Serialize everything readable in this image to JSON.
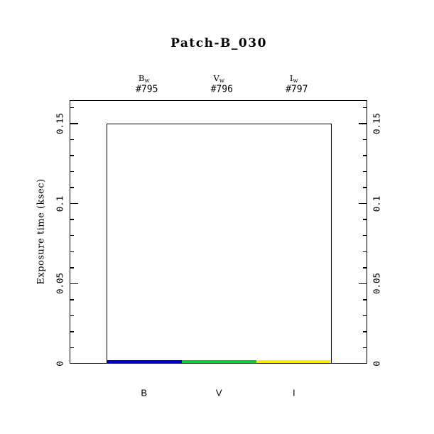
{
  "page": {
    "background_color": "#FFFFFF",
    "foreground_color": "#000000"
  },
  "chart_data": {
    "type": "bar",
    "title": "Patch-B_030",
    "xlabel": "",
    "ylabel": "Exposure time (ksec)",
    "categories": [
      "B",
      "V",
      "I"
    ],
    "series": [
      {
        "name": "planned-exposure-outline",
        "style": "outline",
        "color": "#000000",
        "values": [
          0.15,
          0.15,
          0.15
        ]
      },
      {
        "name": "obtained-exposure-fill",
        "style": "filled",
        "colors": [
          "#0000CD",
          "#00CC33",
          "#FFEE00"
        ],
        "values": [
          0.002,
          0.002,
          0.002
        ]
      }
    ],
    "top_labels": [
      {
        "filter_base": "B",
        "filter_sub": "w",
        "sequence_id": "#795"
      },
      {
        "filter_base": "V",
        "filter_sub": "w",
        "sequence_id": "#796"
      },
      {
        "filter_base": "I",
        "filter_sub": "w",
        "sequence_id": "#797"
      }
    ],
    "ylim": [
      0,
      0.1647
    ],
    "yticks": [
      {
        "value": 0,
        "label": "0"
      },
      {
        "value": 0.05,
        "label": "0.05"
      },
      {
        "value": 0.1,
        "label": "0.1"
      },
      {
        "value": 0.15,
        "label": "0.15"
      }
    ],
    "minor_tick_step": 0.01,
    "tick_label_rotation_deg": -90,
    "axes_with_ticks": [
      "left",
      "right"
    ],
    "grid": false,
    "legend": false
  }
}
